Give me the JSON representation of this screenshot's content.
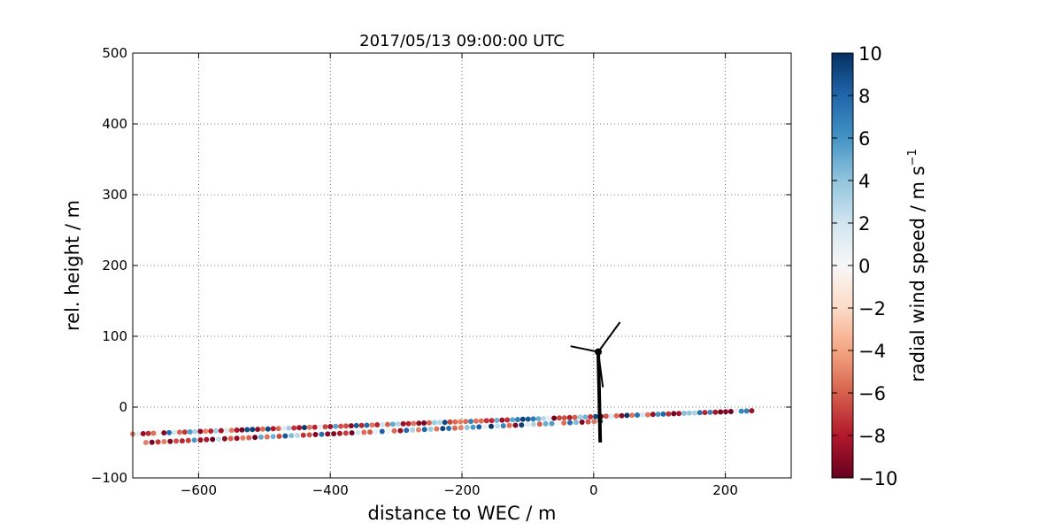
{
  "chart_data": {
    "type": "scatter",
    "title": "2017/05/13 09:00:00 UTC",
    "xlabel": "distance to WEC / m",
    "ylabel": "rel. height / m",
    "xlim": [
      -700,
      300
    ],
    "ylim": [
      -100,
      500
    ],
    "xticks": [
      -600,
      -400,
      -200,
      0,
      200
    ],
    "xtick_labels": [
      "−600",
      "−400",
      "−200",
      "0",
      "200"
    ],
    "yticks": [
      -100,
      0,
      100,
      200,
      300,
      400,
      500
    ],
    "ytick_labels": [
      "−100",
      "0",
      "100",
      "200",
      "300",
      "400",
      "500"
    ],
    "grid": true,
    "colorbar": {
      "label": "radial wind speed / m s",
      "label_superscript": "−1",
      "range": [
        -10,
        10
      ],
      "colormap": "RdBu",
      "ticks": [
        -10,
        -8,
        -6,
        -4,
        -2,
        0,
        2,
        4,
        6,
        8,
        10
      ],
      "tick_labels": [
        "−10",
        "−8",
        "−6",
        "−4",
        "−2",
        "0",
        "2",
        "4",
        "6",
        "8",
        "10"
      ]
    },
    "scan_lines": [
      {
        "x_start": -700,
        "y_start": -38,
        "x_end": 245,
        "y_end": -5,
        "spacing": 7.9
      },
      {
        "x_start": -680,
        "y_start": -50,
        "x_end": 10,
        "y_end": -20,
        "spacing": 9.2
      }
    ],
    "turbine": {
      "tower_base": [
        10,
        -50
      ],
      "hub": [
        7,
        78
      ],
      "blade_tips": [
        [
          -35,
          86
        ],
        [
          40,
          120
        ],
        [
          14,
          28
        ]
      ]
    }
  }
}
